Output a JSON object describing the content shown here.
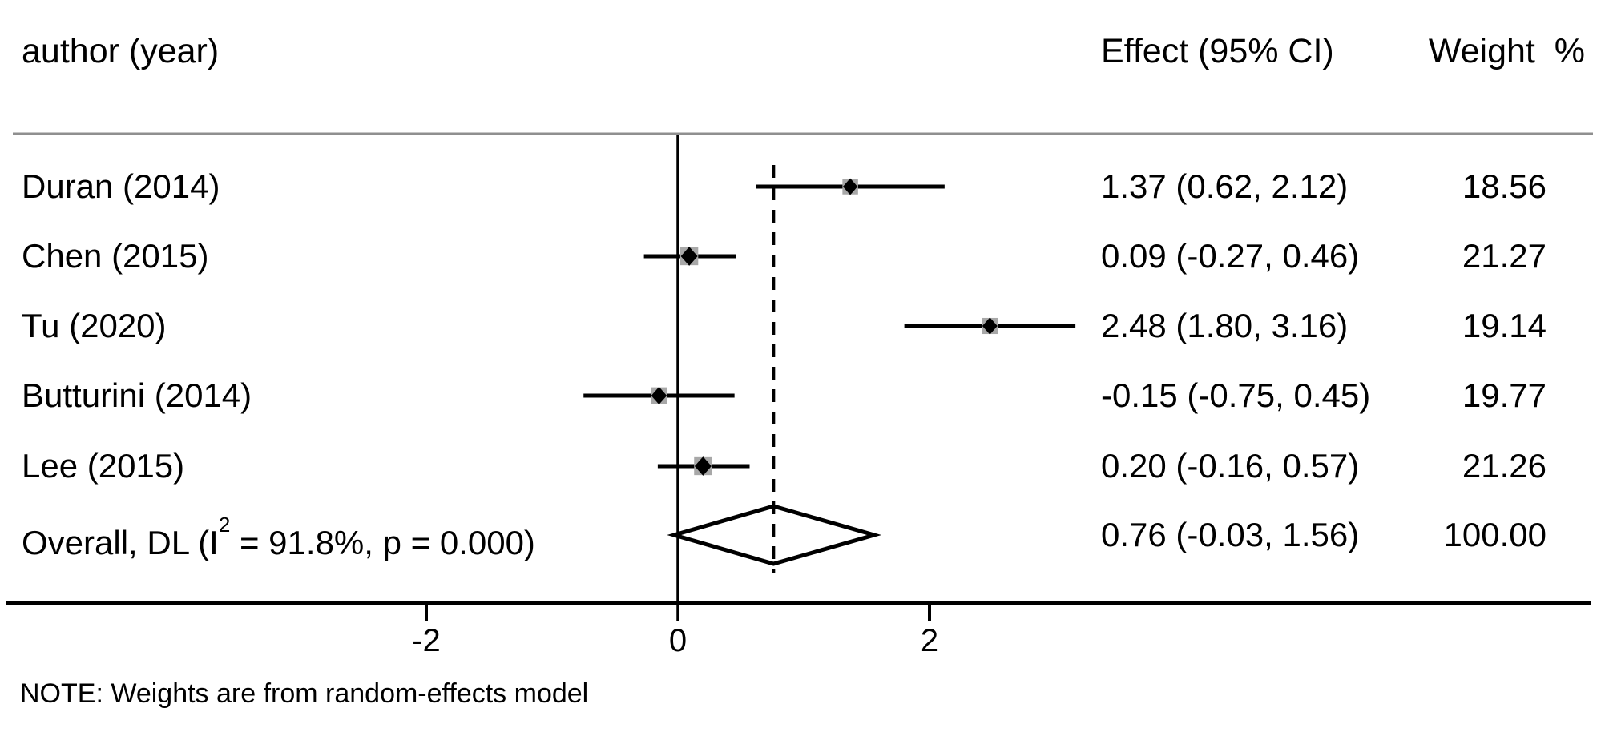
{
  "page": {
    "background": "#ffffff"
  },
  "header": {
    "author_col": "author (year)",
    "effect_col": "Effect (95% CI)",
    "weight_col": "Weight  %"
  },
  "note": "NOTE: Weights are from random-effects model",
  "colors": {
    "text": "#000000",
    "line": "#000000",
    "separator": "#8f8f8f",
    "weight_box": "#a8a8a8",
    "marker": "#000000",
    "diamond_fill": "none"
  },
  "chart_data": {
    "type": "forest",
    "title": "",
    "xlabel": "",
    "x_ticks": [
      -2,
      0,
      2
    ],
    "zero_line": 0,
    "overall_effect_line": 0.76,
    "columns": [
      "author (year)",
      "Effect (95% CI)",
      "Weight %"
    ],
    "studies": [
      {
        "label": "Duran (2014)",
        "effect": 1.37,
        "ci_low": 0.62,
        "ci_high": 2.12,
        "effect_label": "1.37 (0.62, 2.12)",
        "weight": 18.56,
        "weight_label": "18.56"
      },
      {
        "label": "Chen (2015)",
        "effect": 0.09,
        "ci_low": -0.27,
        "ci_high": 0.46,
        "effect_label": "0.09 (-0.27, 0.46)",
        "weight": 21.27,
        "weight_label": "21.27"
      },
      {
        "label": "Tu (2020)",
        "effect": 2.48,
        "ci_low": 1.8,
        "ci_high": 3.16,
        "effect_label": "2.48 (1.80, 3.16)",
        "weight": 19.14,
        "weight_label": "19.14"
      },
      {
        "label": "Butturini (2014)",
        "effect": -0.15,
        "ci_low": -0.75,
        "ci_high": 0.45,
        "effect_label": "-0.15 (-0.75, 0.45)",
        "weight": 19.77,
        "weight_label": "19.77"
      },
      {
        "label": "Lee (2015)",
        "effect": 0.2,
        "ci_low": -0.16,
        "ci_high": 0.57,
        "effect_label": "0.20 (-0.16, 0.57)",
        "weight": 21.26,
        "weight_label": "21.26"
      }
    ],
    "overall": {
      "label_prefix": "Overall, DL (I",
      "label_sup": "2",
      "label_suffix": " = 91.8%, p = 0.000)",
      "effect": 0.76,
      "ci_low": -0.03,
      "ci_high": 1.56,
      "effect_label": "0.76 (-0.03, 1.56)",
      "weight": 100.0,
      "weight_label": "100.00"
    }
  }
}
